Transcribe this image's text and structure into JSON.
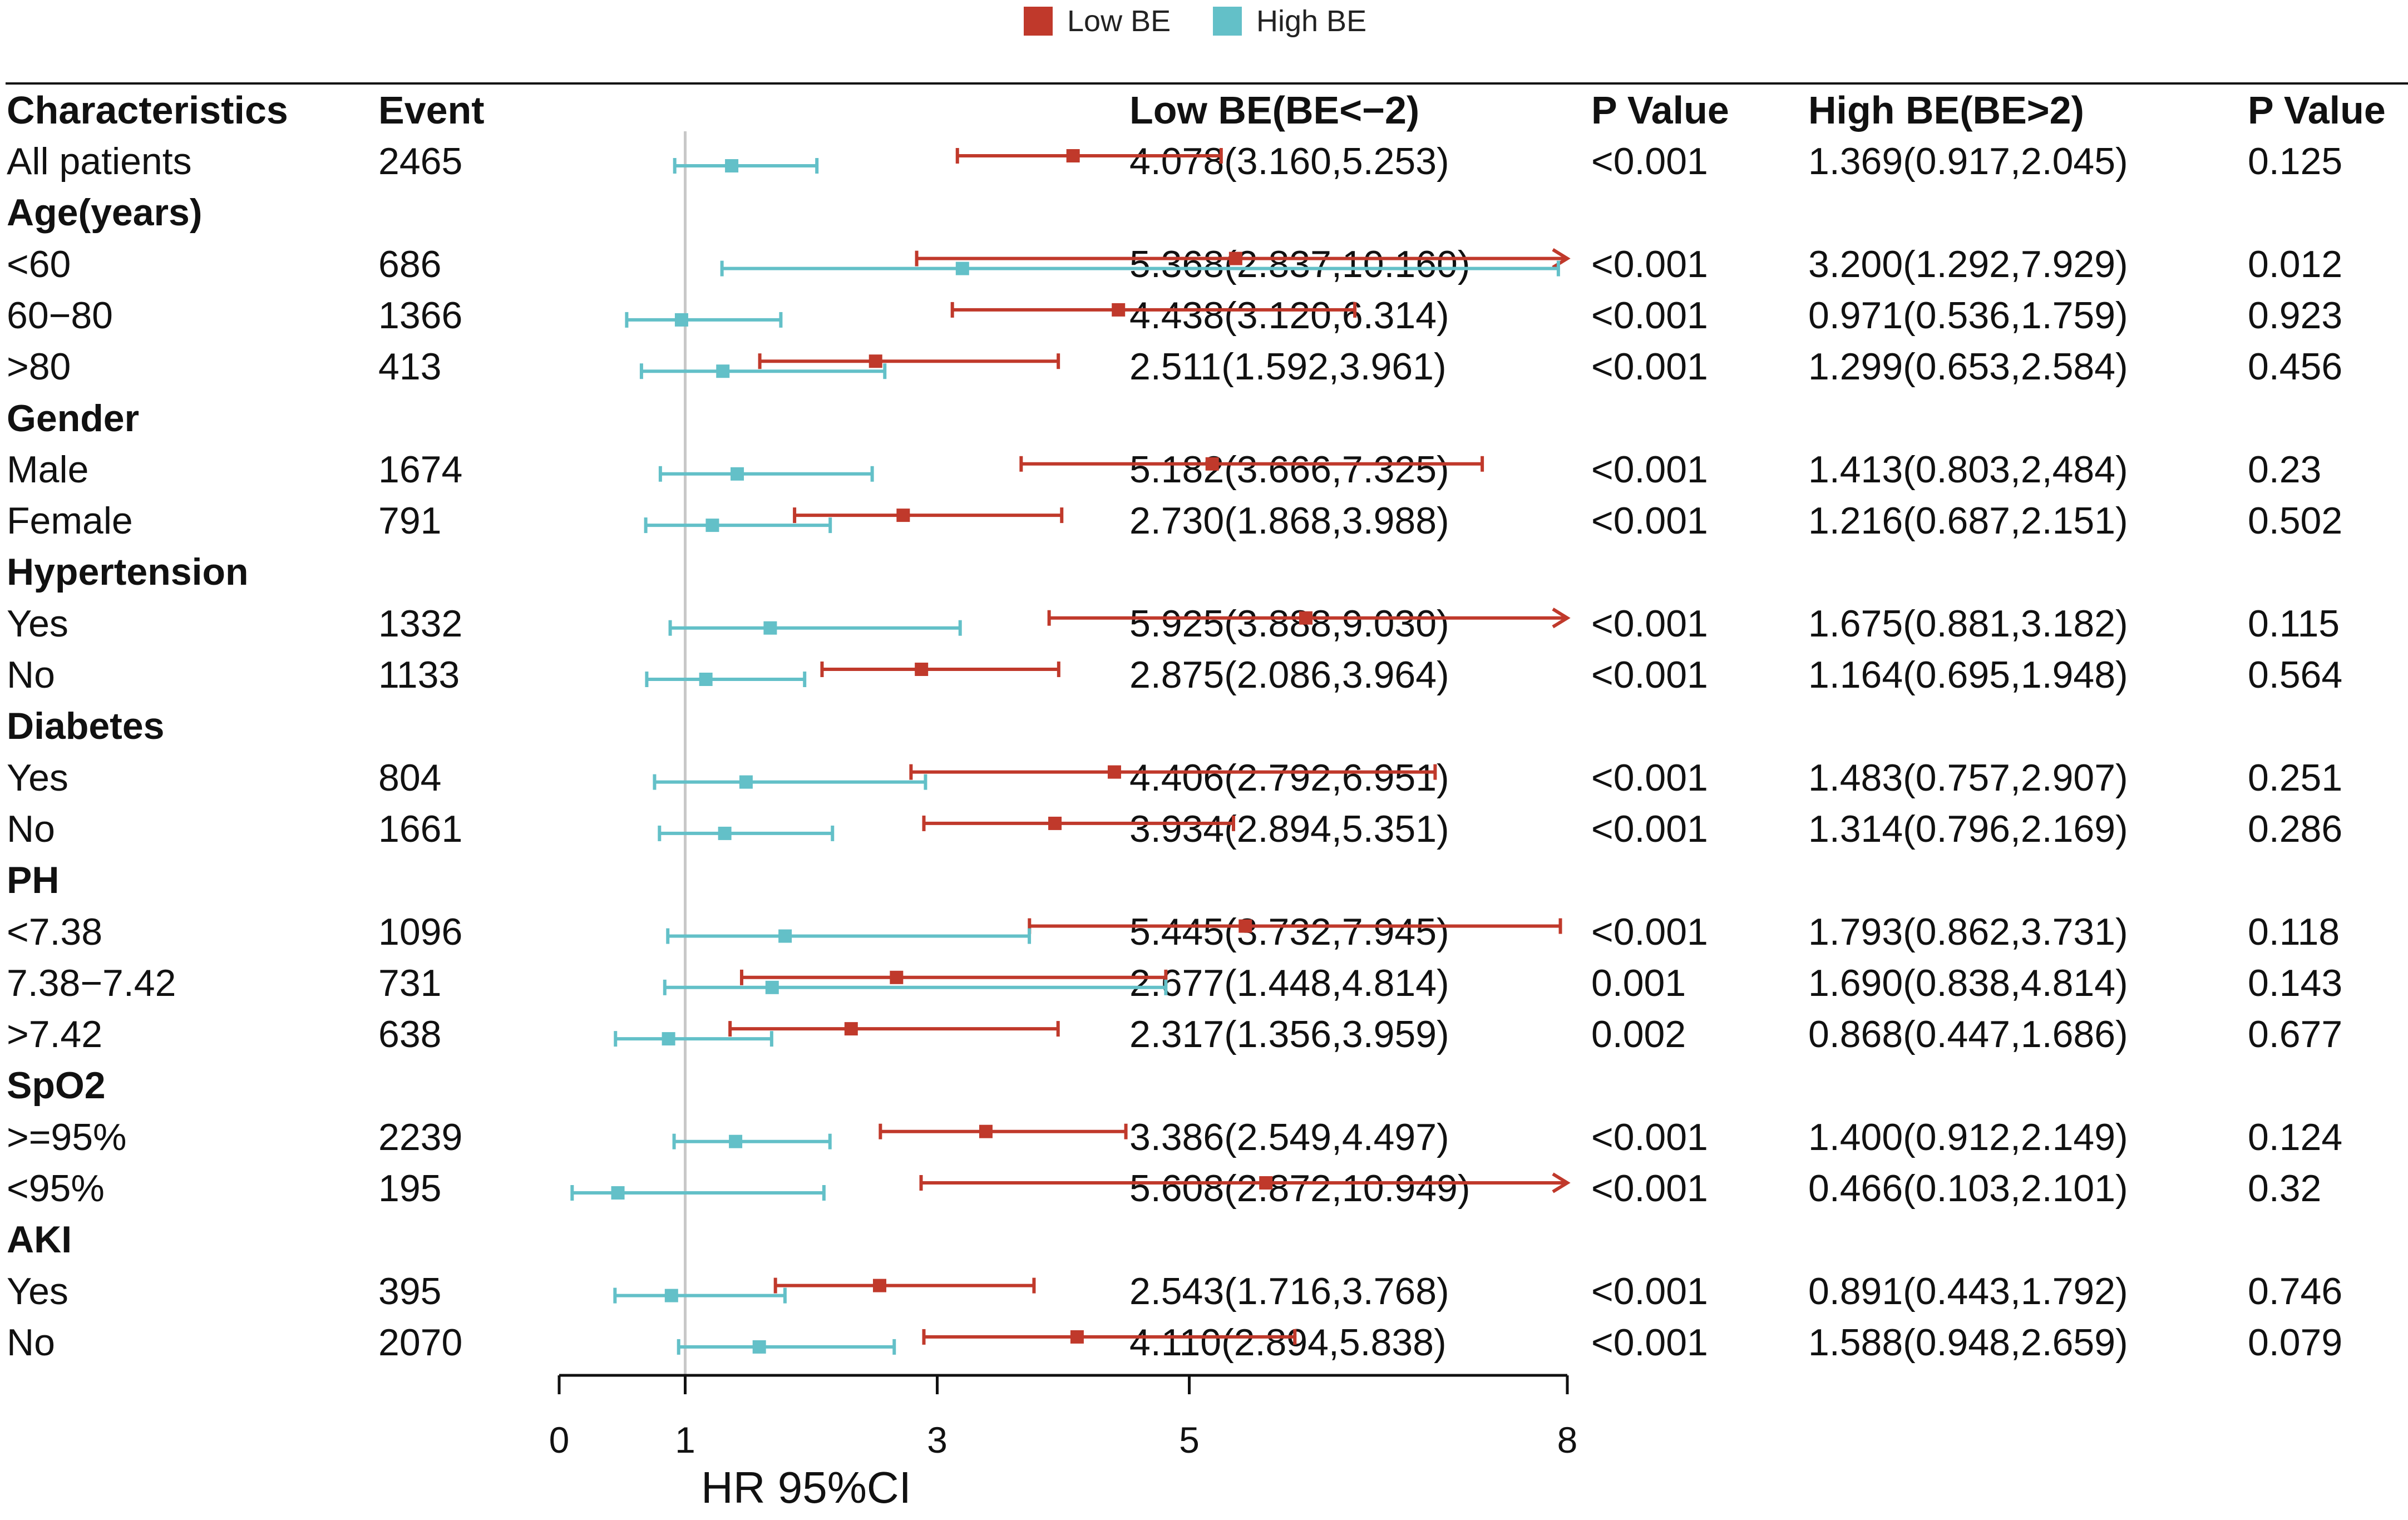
{
  "legend": [
    {
      "label": "Low BE",
      "color": "#c0392b"
    },
    {
      "label": "High BE",
      "color": "#63c0c8"
    }
  ],
  "headers": {
    "characteristics": "Characteristics",
    "event": "Event",
    "low_be": "Low BE(BE<−2)",
    "p_low": "P Value",
    "high_be": "High BE(BE>2)",
    "p_high": "P Value"
  },
  "rows": [
    {
      "type": "data",
      "label": "All patients",
      "event": "2465",
      "low_text": "4.078(3.160,5.253)",
      "low_p": "<0.001",
      "high_text": "1.369(0.917,2.045)",
      "high_p": "0.125"
    },
    {
      "type": "group",
      "label": "Age(years)"
    },
    {
      "type": "data",
      "label": "<60",
      "event": "686",
      "low_text": "5.368(2.837,10.160)",
      "low_p": "<0.001",
      "high_text": "3.200(1.292,7.929)",
      "high_p": "0.012"
    },
    {
      "type": "data",
      "label": "60−80",
      "event": "1366",
      "low_text": "4.438(3.120,6.314)",
      "low_p": "<0.001",
      "high_text": "0.971(0.536,1.759)",
      "high_p": "0.923"
    },
    {
      "type": "data",
      "label": ">80",
      "event": "413",
      "low_text": "2.511(1.592,3.961)",
      "low_p": "<0.001",
      "high_text": "1.299(0.653,2.584)",
      "high_p": "0.456"
    },
    {
      "type": "group",
      "label": "Gender"
    },
    {
      "type": "data",
      "label": "Male",
      "event": "1674",
      "low_text": "5.182(3.666,7.325)",
      "low_p": "<0.001",
      "high_text": "1.413(0.803,2,484)",
      "high_p": "0.23"
    },
    {
      "type": "data",
      "label": "Female",
      "event": "791",
      "low_text": "2.730(1.868,3.988)",
      "low_p": "<0.001",
      "high_text": "1.216(0.687,2.151)",
      "high_p": "0.502"
    },
    {
      "type": "group",
      "label": "Hypertension"
    },
    {
      "type": "data",
      "label": "Yes",
      "event": "1332",
      "low_text": "5.925(3.888,9.030)",
      "low_p": "<0.001",
      "high_text": "1.675(0.881,3.182)",
      "high_p": "0.115"
    },
    {
      "type": "data",
      "label": "No",
      "event": "1133",
      "low_text": "2.875(2.086,3.964)",
      "low_p": "<0.001",
      "high_text": "1.164(0.695,1.948)",
      "high_p": "0.564"
    },
    {
      "type": "group",
      "label": "Diabetes"
    },
    {
      "type": "data",
      "label": "Yes",
      "event": "804",
      "low_text": "4.406(2.792,6.951)",
      "low_p": "<0.001",
      "high_text": "1.483(0.757,2.907)",
      "high_p": "0.251"
    },
    {
      "type": "data",
      "label": "No",
      "event": "1661",
      "low_text": "3.934(2.894,5.351)",
      "low_p": "<0.001",
      "high_text": "1.314(0.796,2.169)",
      "high_p": "0.286"
    },
    {
      "type": "group",
      "label": "PH"
    },
    {
      "type": "data",
      "label": "<7.38",
      "event": "1096",
      "low_text": "5.445(3.732,7.945)",
      "low_p": "<0.001",
      "high_text": "1.793(0.862,3.731)",
      "high_p": "0.118"
    },
    {
      "type": "data",
      "label": "7.38−7.42",
      "event": "731",
      "low_text": "2.677(1.448,4.814)",
      "low_p": "0.001",
      "high_text": "1.690(0.838,4.814)",
      "high_p": "0.143"
    },
    {
      "type": "data",
      "label": ">7.42",
      "event": "638",
      "low_text": "2.317(1.356,3.959)",
      "low_p": "0.002",
      "high_text": "0.868(0.447,1.686)",
      "high_p": "0.677"
    },
    {
      "type": "group",
      "label": "SpO2"
    },
    {
      "type": "data",
      "label": ">=95%",
      "event": "2239",
      "low_text": "3.386(2.549,4.497)",
      "low_p": "<0.001",
      "high_text": "1.400(0.912,2.149)",
      "high_p": "0.124"
    },
    {
      "type": "data",
      "label": "<95%",
      "event": "195",
      "low_text": "5.608(2.872,10.949)",
      "low_p": "<0.001",
      "high_text": "0.466(0.103,2.101)",
      "high_p": "0.32"
    },
    {
      "type": "group",
      "label": "AKI"
    },
    {
      "type": "data",
      "label": "Yes",
      "event": "395",
      "low_text": "2.543(1.716,3.768)",
      "low_p": "<0.001",
      "high_text": "0.891(0.443,1.792)",
      "high_p": "0.746"
    },
    {
      "type": "data",
      "label": "No",
      "event": "2070",
      "low_text": "4.110(2.894,5.838)",
      "low_p": "<0.001",
      "high_text": "1.588(0.948,2.659)",
      "high_p": "0.079"
    }
  ],
  "chart_data": {
    "type": "forest",
    "xlabel": "HR 95%CI",
    "xlim": [
      0,
      8
    ],
    "xticks": [
      0,
      1,
      3,
      5,
      8
    ],
    "reference_line": 1,
    "series": [
      {
        "name": "Low BE",
        "color": "#c0392b",
        "points": [
          {
            "label": "All patients",
            "hr": 4.078,
            "lo": 3.16,
            "hi": 5.253
          },
          {
            "label": "<60",
            "hr": 5.368,
            "lo": 2.837,
            "hi": 10.16
          },
          {
            "label": "60-80",
            "hr": 4.438,
            "lo": 3.12,
            "hi": 6.314
          },
          {
            "label": ">80",
            "hr": 2.511,
            "lo": 1.592,
            "hi": 3.961
          },
          {
            "label": "Male",
            "hr": 5.182,
            "lo": 3.666,
            "hi": 7.325
          },
          {
            "label": "Female",
            "hr": 2.73,
            "lo": 1.868,
            "hi": 3.988
          },
          {
            "label": "Hypertension Yes",
            "hr": 5.925,
            "lo": 3.888,
            "hi": 9.03
          },
          {
            "label": "Hypertension No",
            "hr": 2.875,
            "lo": 2.086,
            "hi": 3.964
          },
          {
            "label": "Diabetes Yes",
            "hr": 4.406,
            "lo": 2.792,
            "hi": 6.951
          },
          {
            "label": "Diabetes No",
            "hr": 3.934,
            "lo": 2.894,
            "hi": 5.351
          },
          {
            "label": "<7.38",
            "hr": 5.445,
            "lo": 3.732,
            "hi": 7.945
          },
          {
            "label": "7.38-7.42",
            "hr": 2.677,
            "lo": 1.448,
            "hi": 4.814
          },
          {
            "label": ">7.42",
            "hr": 2.317,
            "lo": 1.356,
            "hi": 3.959
          },
          {
            "label": ">=95%",
            "hr": 3.386,
            "lo": 2.549,
            "hi": 4.497
          },
          {
            "label": "<95%",
            "hr": 5.608,
            "lo": 2.872,
            "hi": 10.949
          },
          {
            "label": "AKI Yes",
            "hr": 2.543,
            "lo": 1.716,
            "hi": 3.768
          },
          {
            "label": "AKI No",
            "hr": 4.11,
            "lo": 2.894,
            "hi": 5.838
          }
        ]
      },
      {
        "name": "High BE",
        "color": "#63c0c8",
        "points": [
          {
            "label": "All patients",
            "hr": 1.369,
            "lo": 0.917,
            "hi": 2.045
          },
          {
            "label": "<60",
            "hr": 3.2,
            "lo": 1.292,
            "hi": 7.929
          },
          {
            "label": "60-80",
            "hr": 0.971,
            "lo": 0.536,
            "hi": 1.759
          },
          {
            "label": ">80",
            "hr": 1.299,
            "lo": 0.653,
            "hi": 2.584
          },
          {
            "label": "Male",
            "hr": 1.413,
            "lo": 0.803,
            "hi": 2.484
          },
          {
            "label": "Female",
            "hr": 1.216,
            "lo": 0.687,
            "hi": 2.151
          },
          {
            "label": "Hypertension Yes",
            "hr": 1.675,
            "lo": 0.881,
            "hi": 3.182
          },
          {
            "label": "Hypertension No",
            "hr": 1.164,
            "lo": 0.695,
            "hi": 1.948
          },
          {
            "label": "Diabetes Yes",
            "hr": 1.483,
            "lo": 0.757,
            "hi": 2.907
          },
          {
            "label": "Diabetes No",
            "hr": 1.314,
            "lo": 0.796,
            "hi": 2.169
          },
          {
            "label": "<7.38",
            "hr": 1.793,
            "lo": 0.862,
            "hi": 3.731
          },
          {
            "label": "7.38-7.42",
            "hr": 1.69,
            "lo": 0.838,
            "hi": 4.814
          },
          {
            "label": ">7.42",
            "hr": 0.868,
            "lo": 0.447,
            "hi": 1.686
          },
          {
            "label": ">=95%",
            "hr": 1.4,
            "lo": 0.912,
            "hi": 2.149
          },
          {
            "label": "<95%",
            "hr": 0.466,
            "lo": 0.103,
            "hi": 2.101
          },
          {
            "label": "AKI Yes",
            "hr": 0.891,
            "lo": 0.443,
            "hi": 1.792
          },
          {
            "label": "AKI No",
            "hr": 1.588,
            "lo": 0.948,
            "hi": 2.659
          }
        ]
      }
    ]
  }
}
